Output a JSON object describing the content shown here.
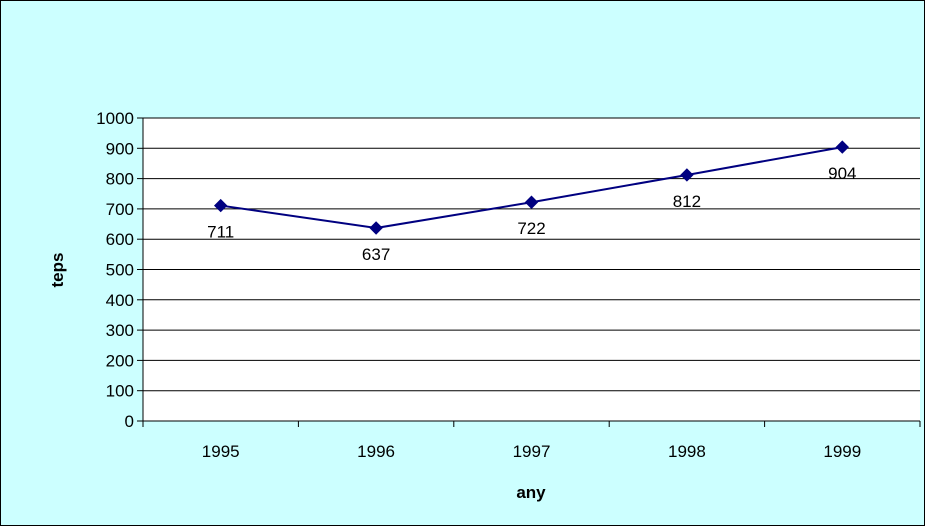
{
  "chart_data": {
    "type": "line",
    "title": "",
    "xlabel": "any",
    "ylabel": "teps",
    "categories": [
      "1995",
      "1996",
      "1997",
      "1998",
      "1999"
    ],
    "series": [
      {
        "values": [
          711,
          637,
          722,
          812,
          904
        ],
        "color": "#000080"
      }
    ],
    "data_labels": [
      "711",
      "637",
      "722",
      "812",
      "904"
    ],
    "ylim": [
      0,
      1000
    ],
    "yticks": [
      0,
      100,
      200,
      300,
      400,
      500,
      600,
      700,
      800,
      900,
      1000
    ],
    "ytick_labels": [
      "0",
      "100",
      "200",
      "300",
      "400",
      "500",
      "600",
      "700",
      "800",
      "900",
      "1000"
    ],
    "grid": true,
    "marker": "diamond",
    "legend": "none",
    "background_color": "#ccffff",
    "plot_background_color": "#ffffff",
    "border_color": "#000000"
  }
}
